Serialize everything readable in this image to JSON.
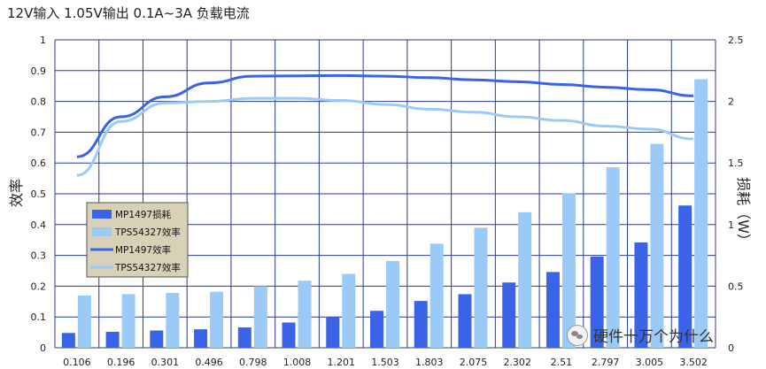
{
  "title": "12V输入 1.05V输出 0.1A~3A 负载电流",
  "watermark": "硬件十万个为什么",
  "colors": {
    "mp_bar": "#3b63e8",
    "tps_bar": "#9ccaf6",
    "mp_line": "#3b63e8",
    "tps_line": "#9ccaf6",
    "grid": "#2b3a8f",
    "legend_bg": "#d9d0b8"
  },
  "chart_data": {
    "type": "bar+line",
    "title": "12V输入 1.05V输出 0.1A~3A 负载电流",
    "ylabel": "效率",
    "y2label": "损耗（W）",
    "ylim": [
      0,
      1
    ],
    "y2lim": [
      0,
      2.5
    ],
    "grid": true,
    "legend_position": "left",
    "categories": [
      "0.106",
      "0.196",
      "0.301",
      "0.496",
      "0.798",
      "1.008",
      "1.201",
      "1.503",
      "1.803",
      "2.075",
      "2.302",
      "2.51",
      "2.797",
      "3.005",
      "3.502"
    ],
    "yticks": [
      "0",
      "0.1",
      "0.2",
      "0.3",
      "0.4",
      "0.5",
      "0.6",
      "0.7",
      "0.8",
      "0.9",
      "1"
    ],
    "y2ticks": [
      "0",
      "0.5",
      "1",
      "1.5",
      "2",
      "2.5"
    ],
    "bar_series": [
      {
        "name": "MP1497损耗",
        "axis": "y2",
        "values": [
          0.12,
          0.13,
          0.14,
          0.15,
          0.165,
          0.205,
          0.25,
          0.3,
          0.38,
          0.435,
          0.53,
          0.615,
          0.74,
          0.855,
          1.155
        ]
      },
      {
        "name": "TPS54327效率",
        "axis": "y2",
        "values": [
          0.425,
          0.435,
          0.445,
          0.455,
          0.5,
          0.545,
          0.6,
          0.705,
          0.845,
          0.975,
          1.1,
          1.255,
          1.465,
          1.655,
          2.18
        ]
      }
    ],
    "line_series": [
      {
        "name": "MP1497效率",
        "axis": "y",
        "values": [
          0.62,
          0.75,
          0.815,
          0.86,
          0.882,
          0.883,
          0.884,
          0.882,
          0.877,
          0.87,
          0.864,
          0.855,
          0.846,
          0.838,
          0.818
        ]
      },
      {
        "name": "TPS54327效率",
        "axis": "y",
        "values": [
          0.56,
          0.735,
          0.795,
          0.8,
          0.81,
          0.81,
          0.803,
          0.79,
          0.775,
          0.765,
          0.75,
          0.738,
          0.72,
          0.71,
          0.678
        ]
      }
    ],
    "legend": [
      "MP1497损耗",
      "TPS54327效率",
      "MP1497效率",
      "TPS54327效率"
    ]
  }
}
